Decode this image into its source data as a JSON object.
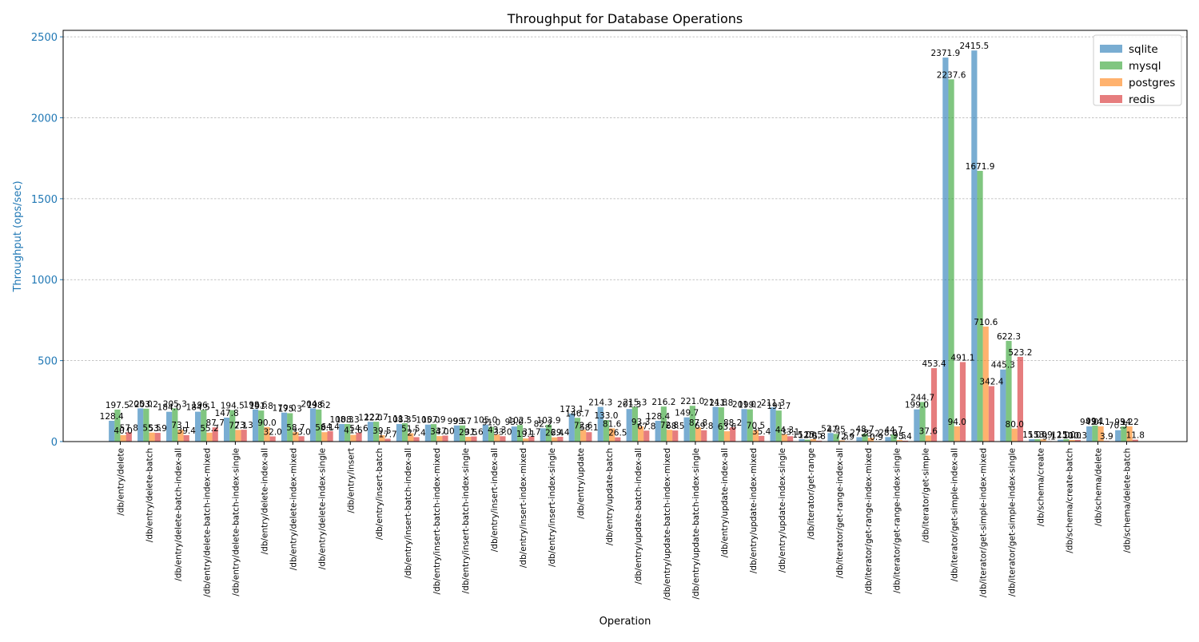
{
  "chart_data": {
    "type": "bar",
    "title": "Throughput for Database Operations",
    "xlabel": "Operation",
    "ylabel": "Throughput (ops/sec)",
    "ylim": [
      0,
      2540
    ],
    "yticks": [
      0,
      500,
      1000,
      1500,
      2000,
      2500
    ],
    "grid": "y-dashed",
    "legend": "top-right",
    "categories": [
      "/db/entry/delete",
      "/db/entry/delete-batch",
      "/db/entry/delete-batch-index-all",
      "/db/entry/delete-batch-index-mixed",
      "/db/entry/delete-batch-index-single",
      "/db/entry/delete-index-all",
      "/db/entry/delete-index-mixed",
      "/db/entry/delete-index-single",
      "/db/entry/insert",
      "/db/entry/insert-batch",
      "/db/entry/insert-batch-index-all",
      "/db/entry/insert-batch-index-mixed",
      "/db/entry/insert-batch-index-single",
      "/db/entry/insert-index-all",
      "/db/entry/insert-index-mixed",
      "/db/entry/insert-index-single",
      "/db/entry/update",
      "/db/entry/update-batch",
      "/db/entry/update-batch-index-all",
      "/db/entry/update-batch-index-mixed",
      "/db/entry/update-batch-index-single",
      "/db/entry/update-index-all",
      "/db/entry/update-index-mixed",
      "/db/entry/update-index-single",
      "/db/iterator/get-range",
      "/db/iterator/get-range-index-all",
      "/db/iterator/get-range-index-mixed",
      "/db/iterator/get-range-index-single",
      "/db/iterator/get-simple",
      "/db/iterator/get-simple-index-all",
      "/db/iterator/get-simple-index-mixed",
      "/db/iterator/get-simple-index-single",
      "/db/schema/create",
      "/db/schema/create-batch",
      "/db/schema/delete",
      "/db/schema/delete-batch"
    ],
    "series": [
      {
        "name": "sqlite",
        "color": "#1f77b4",
        "values": [
          128.4,
          205.0,
          184.0,
          184.5,
          147.8,
          198.6,
          179.0,
          204.6,
          108.3,
          122.0,
          108.3,
          105.0,
          99.5,
          105.0,
          93.0,
          82.2,
          173.1,
          214.3,
          201.3,
          128.4,
          149.7,
          214.8,
          201.0,
          211.3,
          15.0,
          52.9,
          27.3,
          28.0,
          199.0,
          2371.9,
          2415.5,
          445.3,
          15.0,
          12.0,
          94.0,
          70.5
        ]
      },
      {
        "name": "mysql",
        "color": "#2ca02c",
        "values": [
          197.5,
          203.2,
          205.3,
          196.1,
          194.5,
          191.8,
          175.3,
          198.2,
          108.3,
          122.7,
          113.5,
          107.9,
          99.7,
          91.0,
          102.5,
          103.9,
          146.7,
          133.0,
          215.3,
          216.2,
          221.0,
          211.8,
          199.2,
          191.7,
          12.0,
          47.5,
          48.7,
          44.7,
          244.7,
          2237.6,
          1671.9,
          622.3,
          15.0,
          15.0,
          99.1,
          93.2
        ]
      },
      {
        "name": "postgres",
        "color": "#ff7f0e",
        "values": [
          40.0,
          55.5,
          73.1,
          55.2,
          72.1,
          90.0,
          58.7,
          58.1,
          41.6,
          39.5,
          51.5,
          34.0,
          29.5,
          43.3,
          19.1,
          26.4,
          72.6,
          81.6,
          93.3,
          72.8,
          87.8,
          63.6,
          70.5,
          44.3,
          15.5,
          7.5,
          23.2,
          9.5,
          37.6,
          94.0,
          710.6,
          80.0,
          13.9,
          10.0,
          94.1,
          94.2
        ]
      },
      {
        "name": "redis",
        "color": "#d62728",
        "values": [
          57.8,
          53.9,
          39.4,
          87.7,
          73.3,
          32.0,
          33.0,
          64.4,
          54.6,
          17.7,
          27.4,
          37.0,
          31.6,
          33.0,
          31.7,
          29.4,
          58.1,
          26.5,
          67.8,
          68.5,
          69.8,
          88.2,
          35.4,
          33.1,
          5.8,
          2.9,
          0.9,
          5.4,
          453.4,
          491.1,
          342.4,
          523.2,
          3.1,
          10.3,
          3.9,
          11.8
        ]
      }
    ]
  }
}
